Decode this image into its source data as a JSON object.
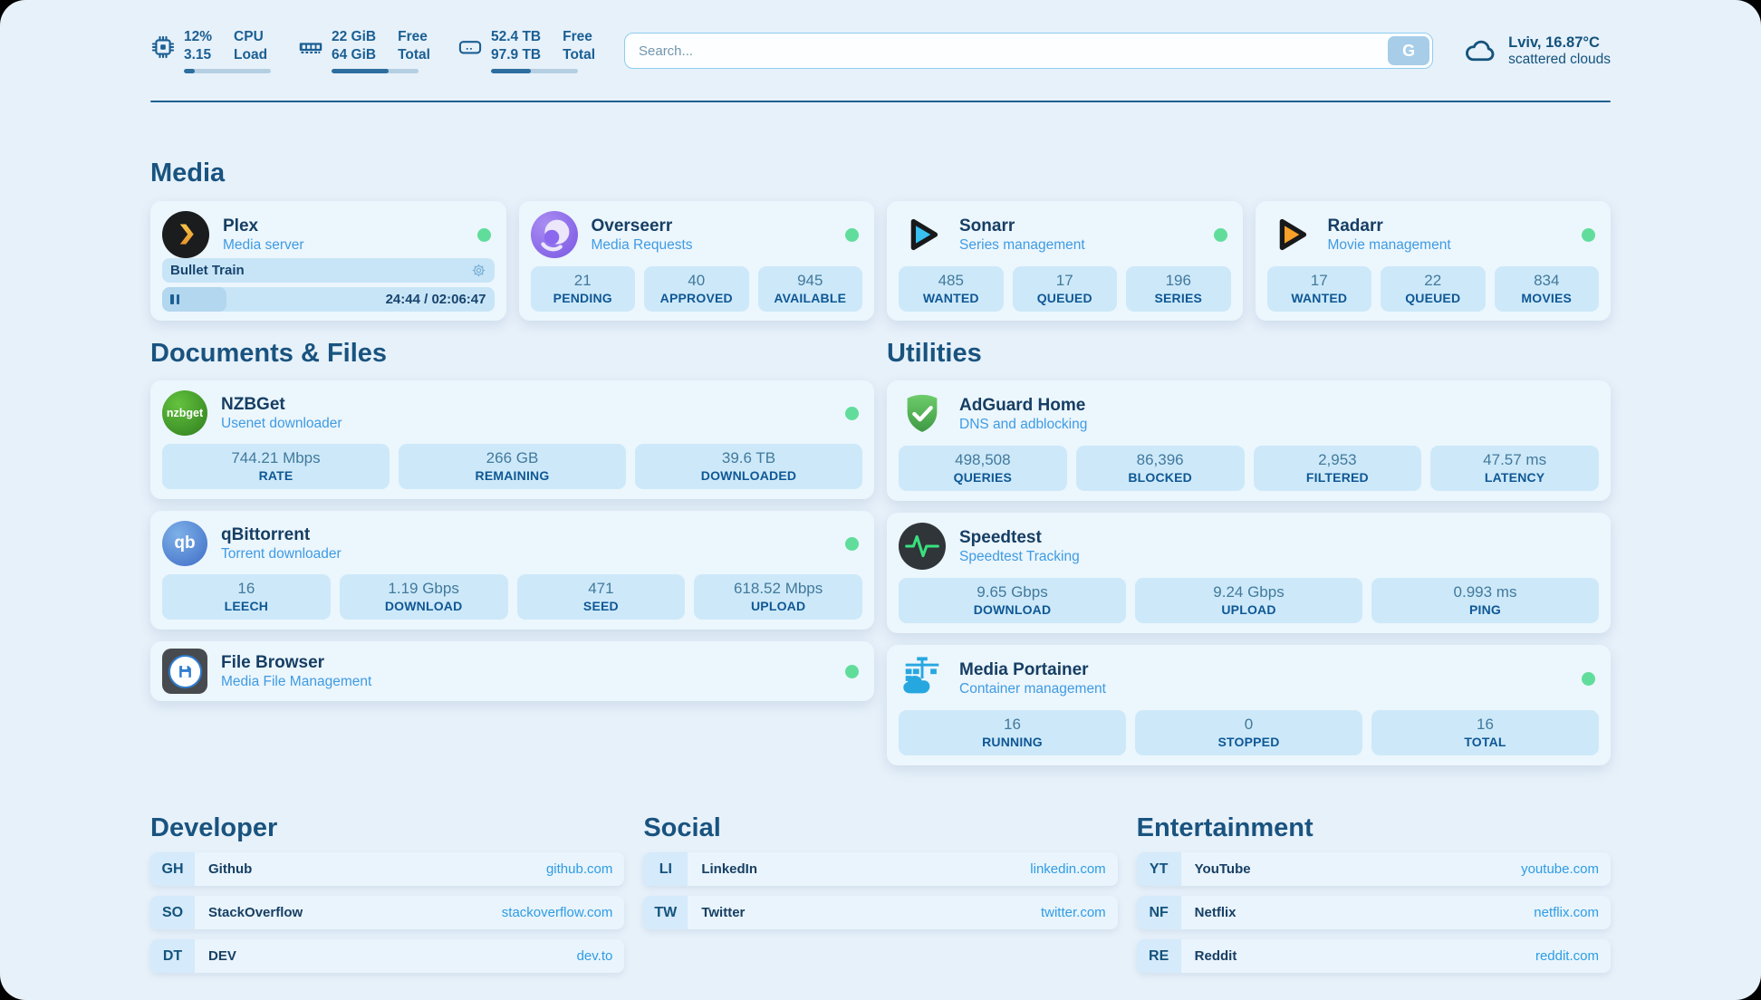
{
  "colors": {
    "page_bg": "#e7f1fa",
    "card_bg": "#ecf6fd",
    "tile_bg": "#cde9f9",
    "heading_blue": "#19537f",
    "title_navy": "#163e63",
    "subtitle_blue": "#3f9be2",
    "stat_value_blue": "#42799c",
    "stat_label_blue": "#0f5795",
    "link_blue": "#2f9ce4",
    "status_green": "#61dd9b",
    "progress_fill": "#2d6e9e"
  },
  "icons": {
    "cpu-icon": "chip",
    "ram-icon": "memory-stick",
    "disk-icon": "hard-drive",
    "cloud-icon": "cloud",
    "search-button": "G",
    "plex-icon": "yellow-chevron-circle",
    "overseerr-icon": "purple-eye-circle",
    "sonarr-icon": "blue-play-triangle",
    "radarr-icon": "orange-play-triangle",
    "nzbget-icon": "green-circle-nzbget",
    "qbittorrent-icon": "blue-circle-qb",
    "filebrowser-icon": "floppy-disk-circle",
    "adguard-icon": "green-shield-check",
    "speedtest-icon": "pulse-line-circle",
    "portainer-icon": "crane-containers",
    "gear-icon": "gear",
    "pause-icon": "pause-bars",
    "status-dot": "green-dot"
  },
  "header": {
    "stats": [
      {
        "icon": "cpu-icon",
        "col1": [
          "12%",
          "3.15"
        ],
        "col2": [
          "CPU",
          "Load"
        ],
        "progress": 12
      },
      {
        "icon": "ram-icon",
        "col1": [
          "22 GiB",
          "64 GiB"
        ],
        "col2": [
          "Free",
          "Total"
        ],
        "progress": 66
      },
      {
        "icon": "disk-icon",
        "col1": [
          "52.4 TB",
          "97.9 TB"
        ],
        "col2": [
          "Free",
          "Total"
        ],
        "progress": 46
      }
    ],
    "search": {
      "placeholder": "Search...",
      "button": "G"
    },
    "weather": {
      "location": "Lviv, 16.87°C",
      "condition": "scattered clouds"
    }
  },
  "media": {
    "heading": "Media",
    "plex": {
      "title": "Plex",
      "subtitle": "Media server",
      "now_playing": "Bullet Train",
      "time": "24:44 / 02:06:47",
      "progress_pct": 19.5
    },
    "overseerr": {
      "title": "Overseerr",
      "subtitle": "Media Requests",
      "stats": [
        {
          "value": "21",
          "label": "PENDING"
        },
        {
          "value": "40",
          "label": "APPROVED"
        },
        {
          "value": "945",
          "label": "AVAILABLE"
        }
      ]
    },
    "sonarr": {
      "title": "Sonarr",
      "subtitle": "Series management",
      "stats": [
        {
          "value": "485",
          "label": "WANTED"
        },
        {
          "value": "17",
          "label": "QUEUED"
        },
        {
          "value": "196",
          "label": "SERIES"
        }
      ]
    },
    "radarr": {
      "title": "Radarr",
      "subtitle": "Movie management",
      "stats": [
        {
          "value": "17",
          "label": "WANTED"
        },
        {
          "value": "22",
          "label": "QUEUED"
        },
        {
          "value": "834",
          "label": "MOVIES"
        }
      ]
    }
  },
  "documents": {
    "heading": "Documents & Files",
    "nzbget": {
      "title": "NZBGet",
      "subtitle": "Usenet downloader",
      "icon_text": "nzbget",
      "stats": [
        {
          "value": "744.21 Mbps",
          "label": "RATE"
        },
        {
          "value": "266 GB",
          "label": "REMAINING"
        },
        {
          "value": "39.6 TB",
          "label": "DOWNLOADED"
        }
      ]
    },
    "qbittorrent": {
      "title": "qBittorrent",
      "subtitle": "Torrent downloader",
      "icon_text": "qb",
      "stats": [
        {
          "value": "16",
          "label": "LEECH"
        },
        {
          "value": "1.19 Gbps",
          "label": "DOWNLOAD"
        },
        {
          "value": "471",
          "label": "SEED"
        },
        {
          "value": "618.52 Mbps",
          "label": "UPLOAD"
        }
      ]
    },
    "filebrowser": {
      "title": "File Browser",
      "subtitle": "Media File Management"
    }
  },
  "utilities": {
    "heading": "Utilities",
    "adguard": {
      "title": "AdGuard Home",
      "subtitle": "DNS and adblocking",
      "stats": [
        {
          "value": "498,508",
          "label": "QUERIES"
        },
        {
          "value": "86,396",
          "label": "BLOCKED"
        },
        {
          "value": "2,953",
          "label": "FILTERED"
        },
        {
          "value": "47.57 ms",
          "label": "LATENCY"
        }
      ]
    },
    "speedtest": {
      "title": "Speedtest",
      "subtitle": "Speedtest Tracking",
      "stats": [
        {
          "value": "9.65 Gbps",
          "label": "DOWNLOAD"
        },
        {
          "value": "9.24 Gbps",
          "label": "UPLOAD"
        },
        {
          "value": "0.993 ms",
          "label": "PING"
        }
      ]
    },
    "portainer": {
      "title": "Media Portainer",
      "subtitle": "Container management",
      "stats": [
        {
          "value": "16",
          "label": "RUNNING"
        },
        {
          "value": "0",
          "label": "STOPPED"
        },
        {
          "value": "16",
          "label": "TOTAL"
        }
      ]
    }
  },
  "bookmarks": {
    "developer": {
      "heading": "Developer",
      "items": [
        {
          "abbr": "GH",
          "name": "Github",
          "url": "github.com"
        },
        {
          "abbr": "SO",
          "name": "StackOverflow",
          "url": "stackoverflow.com"
        },
        {
          "abbr": "DT",
          "name": "DEV",
          "url": "dev.to"
        }
      ]
    },
    "social": {
      "heading": "Social",
      "items": [
        {
          "abbr": "LI",
          "name": "LinkedIn",
          "url": "linkedin.com"
        },
        {
          "abbr": "TW",
          "name": "Twitter",
          "url": "twitter.com"
        }
      ]
    },
    "entertainment": {
      "heading": "Entertainment",
      "items": [
        {
          "abbr": "YT",
          "name": "YouTube",
          "url": "youtube.com"
        },
        {
          "abbr": "NF",
          "name": "Netflix",
          "url": "netflix.com"
        },
        {
          "abbr": "RE",
          "name": "Reddit",
          "url": "reddit.com"
        }
      ]
    }
  }
}
